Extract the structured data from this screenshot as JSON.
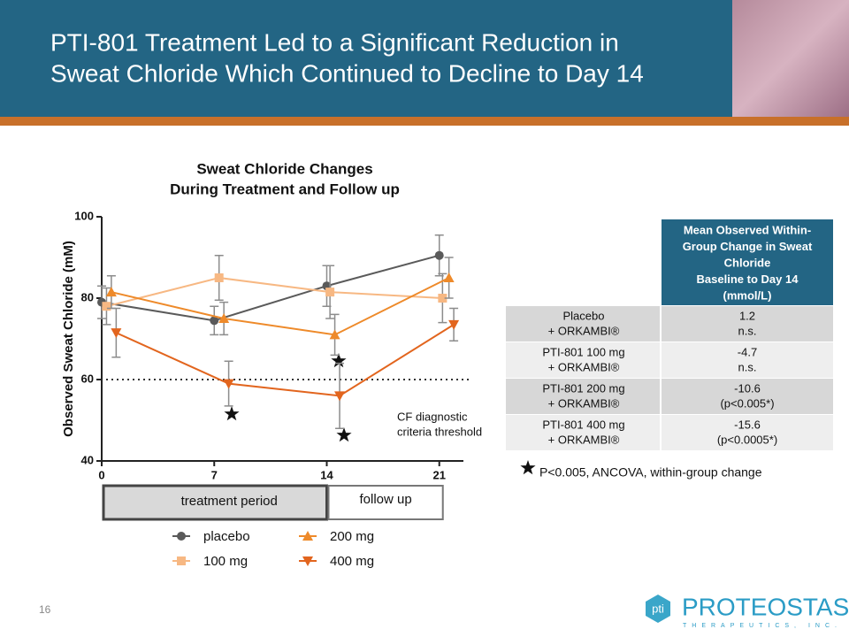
{
  "slide": {
    "title_lines": [
      "PTI-801 Treatment Led to a Significant Reduction in",
      "Sweat Chloride Which Continued to Decline to Day 14"
    ],
    "page_number": "16"
  },
  "chart_data": {
    "type": "line",
    "title_lines": [
      "Sweat Chloride Changes",
      "During Treatment and Follow up"
    ],
    "y_label": "Observed Sweat Chloride (mM)",
    "xlim": [
      0,
      22.5
    ],
    "xticks": [
      0,
      7,
      14,
      21
    ],
    "ylim": [
      40,
      100
    ],
    "yticks": [
      40,
      60,
      80,
      100
    ],
    "errorbar_color": "#8c8c8c",
    "series": [
      {
        "name": "placebo",
        "color": "#5a5a5a",
        "marker": "circle",
        "x": [
          0,
          7,
          14,
          21
        ],
        "values": [
          79,
          74.5,
          83,
          90.5
        ],
        "errors": [
          4,
          3.5,
          5,
          5
        ]
      },
      {
        "name": "100 mg",
        "color": "#f7b883",
        "marker": "square",
        "x": [
          0.3,
          7.3,
          14.2,
          21.2
        ],
        "values": [
          78,
          85,
          81.5,
          80
        ],
        "errors": [
          4.5,
          5.5,
          6.5,
          6
        ]
      },
      {
        "name": "200 mg",
        "color": "#ee8a2a",
        "marker": "triangle-up",
        "x": [
          0.6,
          7.6,
          14.5,
          21.6
        ],
        "values": [
          81.5,
          75,
          71,
          85
        ],
        "errors": [
          4,
          4,
          5,
          5
        ]
      },
      {
        "name": "400 mg",
        "color": "#e2651e",
        "marker": "triangle-down",
        "x": [
          0.9,
          7.9,
          14.8,
          21.9
        ],
        "values": [
          71.5,
          59,
          56,
          73.5
        ],
        "errors": [
          6,
          5.5,
          8,
          4
        ]
      }
    ],
    "threshold": {
      "value": 60,
      "label_lines": [
        "CF diagnostic",
        "criteria threshold"
      ]
    },
    "periods": [
      {
        "label": "treatment period",
        "range": [
          0,
          14
        ]
      },
      {
        "label": "follow up",
        "range": [
          14,
          21
        ]
      }
    ]
  },
  "table": {
    "header_lines": [
      "Mean Observed Within-",
      "Group Change in Sweat",
      "Chloride",
      "Baseline to Day 14",
      "(mmol/L)"
    ],
    "rows": [
      [
        [
          "Placebo",
          "+ ORKAMBI®"
        ],
        [
          "1.2",
          "n.s."
        ]
      ],
      [
        [
          "PTI-801 100 mg",
          "+ ORKAMBI®"
        ],
        [
          "-4.7",
          "n.s."
        ]
      ],
      [
        [
          "PTI-801 200 mg",
          "+ ORKAMBI®"
        ],
        [
          "-10.6",
          "(p<0.005*)"
        ]
      ],
      [
        [
          "PTI-801 400 mg",
          "+ ORKAMBI®"
        ],
        [
          "-15.6",
          "(p<0.0005*)"
        ]
      ]
    ],
    "footnote": "P<0.005, ANCOVA, within-group change"
  },
  "logo": {
    "mark": "pti",
    "name": "PROTEOSTASIS",
    "tagline": "THERAPEUTICS, INC."
  }
}
